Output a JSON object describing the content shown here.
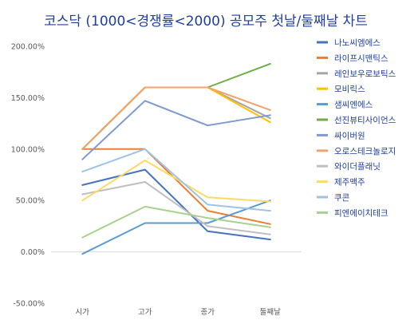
{
  "chart_data": {
    "type": "line",
    "title": "코스닥 (1000<경쟁률<2000) 공모주 첫날/둘째날 차트",
    "xlabel": "",
    "ylabel": "",
    "categories": [
      "시가",
      "고가",
      "종가",
      "둘째날"
    ],
    "ylim": [
      -50,
      200
    ],
    "yticks": [
      -50,
      0,
      50,
      100,
      150,
      200
    ],
    "ytick_labels": [
      "-50.00%",
      "0.00%",
      "50.00%",
      "100.00%",
      "150.00%",
      "200.00%"
    ],
    "grid": false,
    "legend_position": "right",
    "series": [
      {
        "name": "나노씨엠에스",
        "color": "#4472C4",
        "values": [
          65,
          80,
          20,
          12
        ]
      },
      {
        "name": "라이프시맨틱스",
        "color": "#ED7D31",
        "values": [
          100,
          100,
          40,
          27
        ]
      },
      {
        "name": "레인보우로보틱스",
        "color": "#A5A5A5",
        "values": [
          100,
          160,
          160,
          130
        ]
      },
      {
        "name": "모비릭스",
        "color": "#FFC000",
        "values": [
          100,
          160,
          160,
          126
        ]
      },
      {
        "name": "샘씨엔에스",
        "color": "#5B9BD5",
        "values": [
          -2,
          28,
          28,
          50
        ]
      },
      {
        "name": "선진뷰티사이언스",
        "color": "#70AD47",
        "values": [
          100,
          160,
          160,
          183
        ]
      },
      {
        "name": "싸이버원",
        "color": "#7E9ACF",
        "values": [
          90,
          147,
          123,
          133
        ]
      },
      {
        "name": "오로스테크놀로지",
        "color": "#F4A26D",
        "values": [
          100,
          160,
          160,
          138
        ]
      },
      {
        "name": "와이더플래닛",
        "color": "#BFBFBF",
        "values": [
          56,
          68,
          25,
          17
        ]
      },
      {
        "name": "제주맥주",
        "color": "#FFD966",
        "values": [
          50,
          89,
          53,
          49
        ]
      },
      {
        "name": "쿠콘",
        "color": "#9DC3E6",
        "values": [
          78,
          100,
          46,
          40
        ]
      },
      {
        "name": "피엔에이치테크",
        "color": "#A9D18E",
        "values": [
          14,
          44,
          33,
          24
        ]
      }
    ]
  }
}
